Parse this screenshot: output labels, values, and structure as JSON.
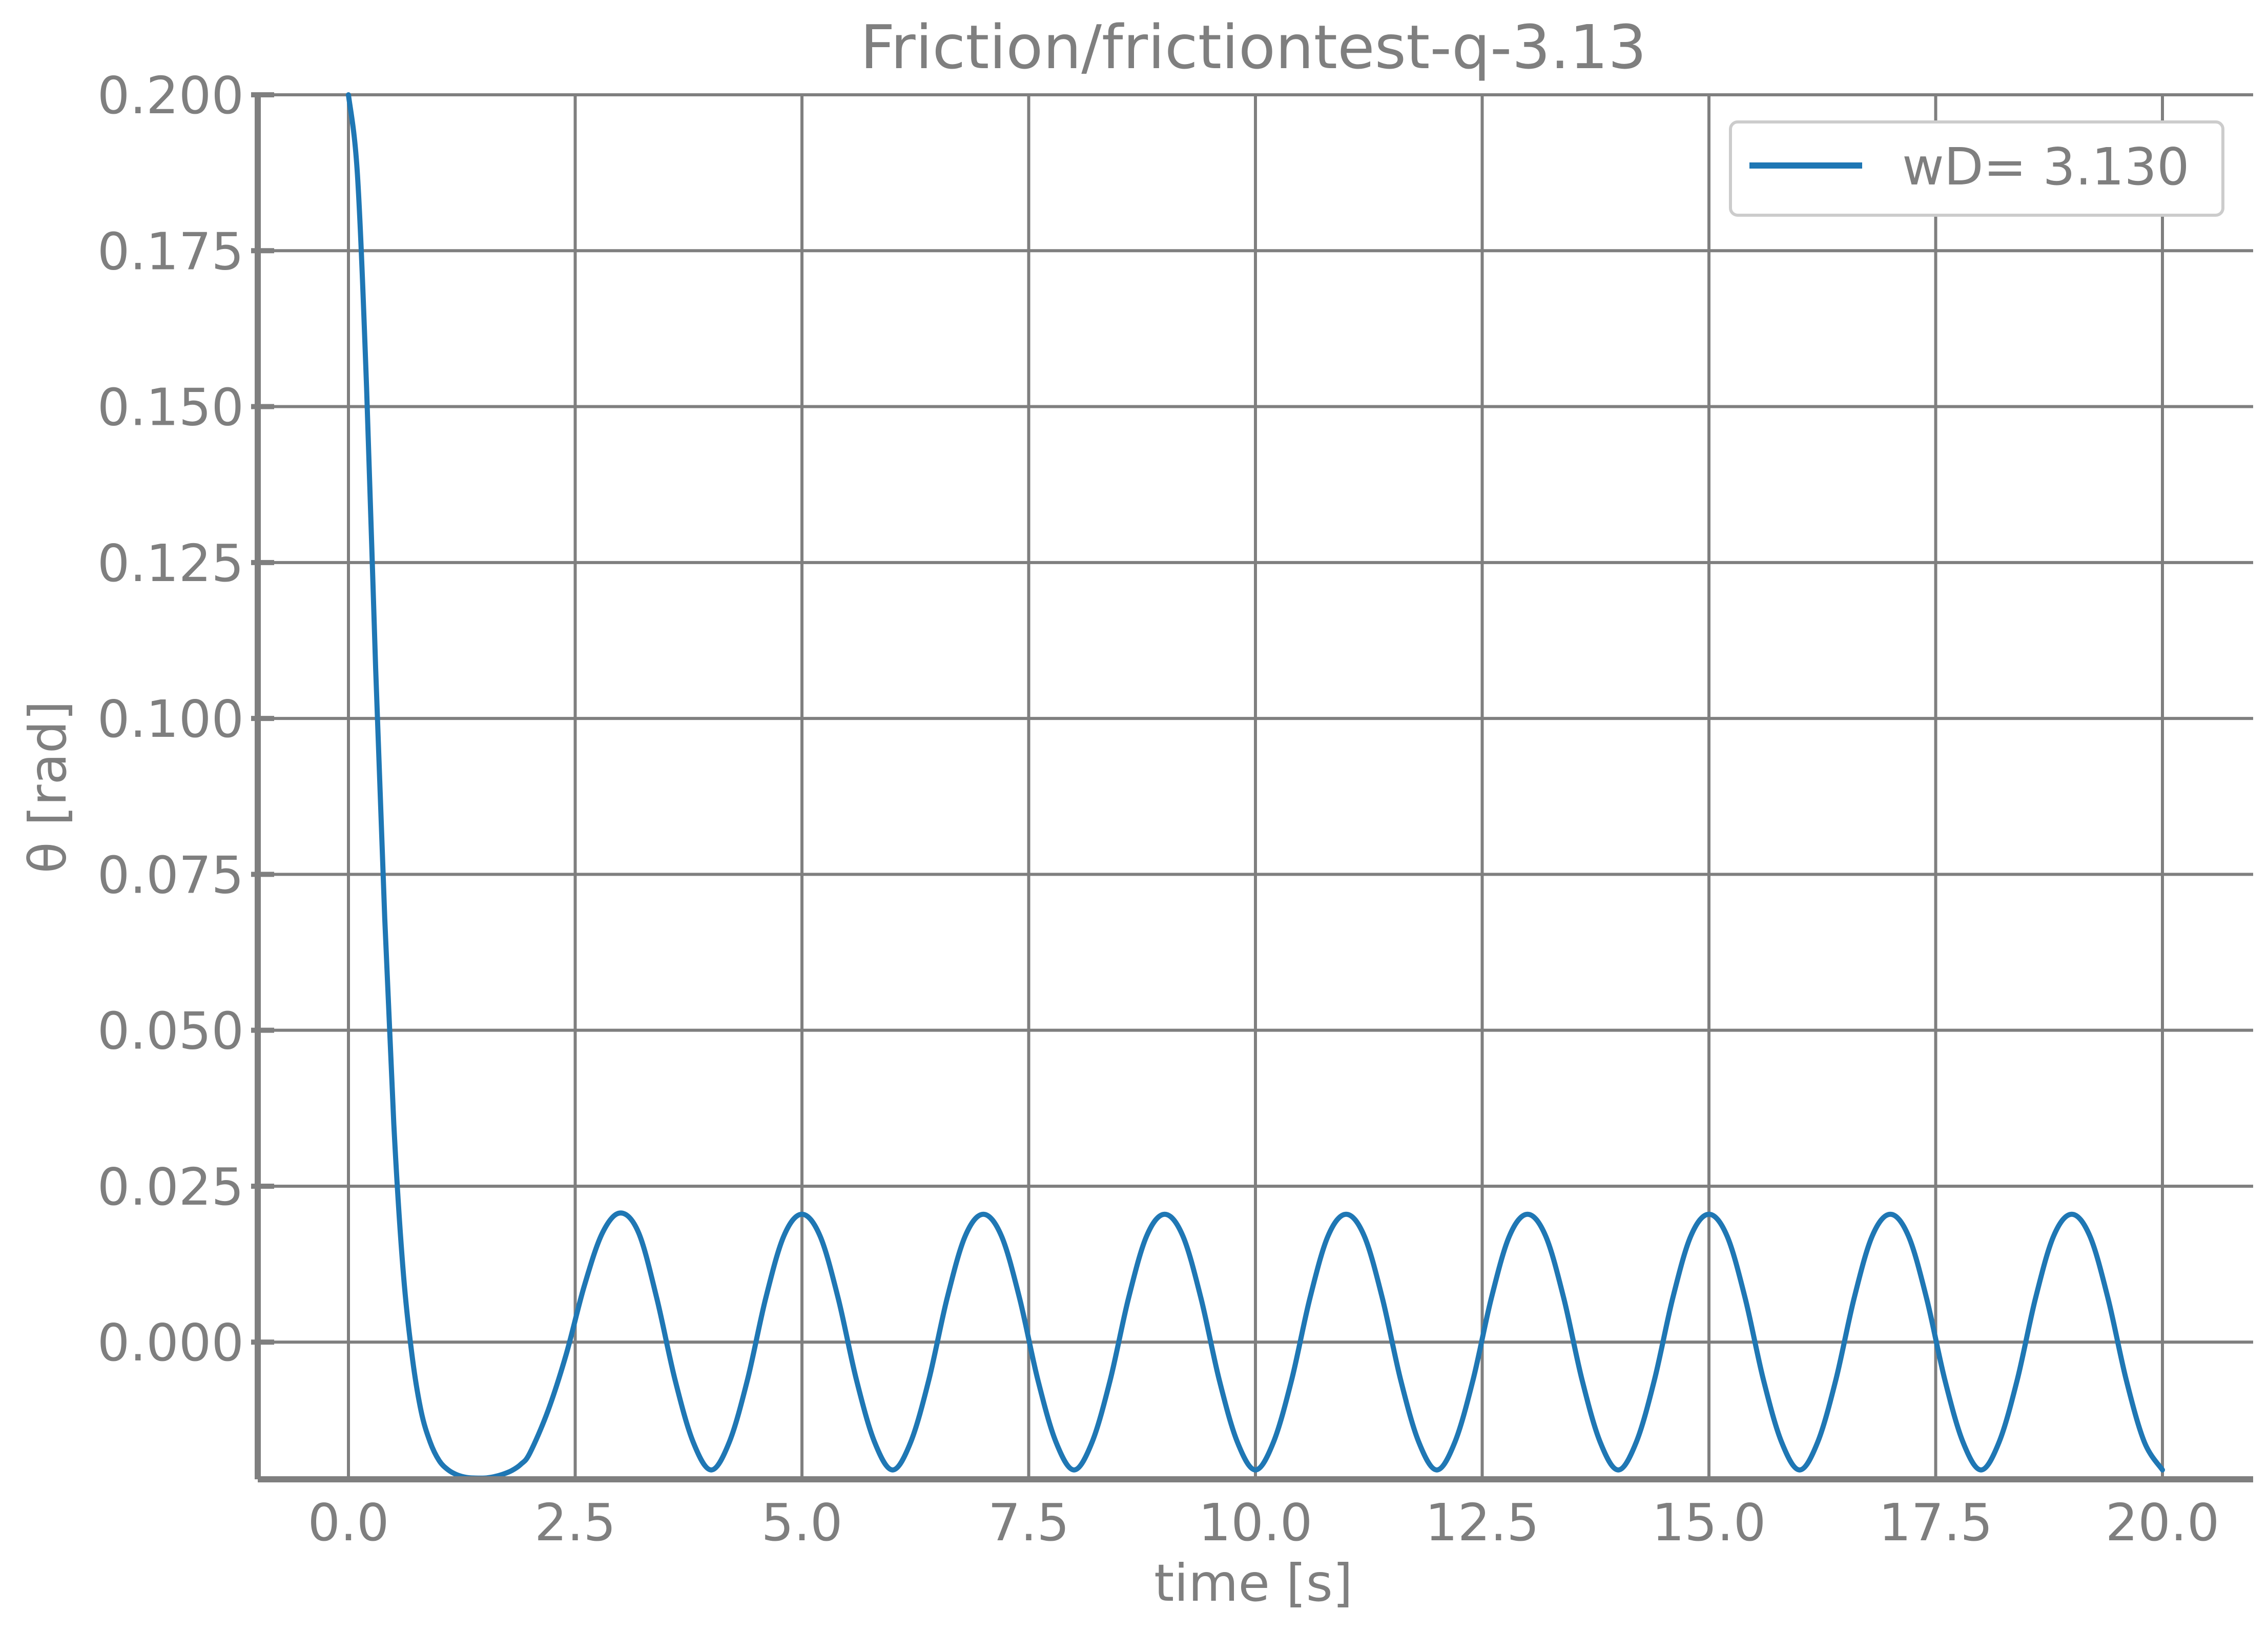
{
  "chart_data": {
    "type": "line",
    "title": "Friction/frictiontest-q-3.13",
    "xlabel": "time [s]",
    "ylabel": "θ [rad]",
    "xlim": [
      -1.0,
      21.0
    ],
    "ylim": [
      -0.022,
      0.2
    ],
    "xticks": [
      0.0,
      2.5,
      5.0,
      7.5,
      10.0,
      12.5,
      15.0,
      17.5,
      20.0
    ],
    "xtick_labels": [
      "0.0",
      "2.5",
      "5.0",
      "7.5",
      "10.0",
      "12.5",
      "15.0",
      "17.5",
      "20.0"
    ],
    "yticks": [
      0.0,
      0.025,
      0.05,
      0.075,
      0.1,
      0.125,
      0.15,
      0.175,
      0.2
    ],
    "ytick_labels": [
      "0.000",
      "0.025",
      "0.050",
      "0.075",
      "0.100",
      "0.125",
      "0.150",
      "0.175",
      "0.200"
    ],
    "grid": true,
    "legend_position": "top-right",
    "series": [
      {
        "name": "wD= 3.130",
        "color": "#1f77b4",
        "x": [
          0.0,
          0.1,
          0.2,
          0.3,
          0.4,
          0.5,
          0.6,
          0.7,
          0.8,
          0.9,
          1.0,
          1.1,
          1.2,
          1.3,
          1.4,
          1.5,
          1.6,
          1.7,
          1.8,
          1.9,
          2.0,
          2.2,
          2.4,
          2.6,
          2.8,
          3.0,
          3.2,
          3.4,
          3.6,
          3.8,
          4.0,
          4.2,
          4.4,
          4.6,
          4.8,
          5.0,
          5.2,
          5.4,
          5.6,
          5.8,
          6.0,
          6.2,
          6.4,
          6.6,
          6.8,
          7.0,
          7.2,
          7.4,
          7.6,
          7.8,
          8.0,
          8.2,
          8.4,
          8.6,
          8.8,
          9.0,
          9.2,
          9.4,
          9.6,
          9.8,
          10.0,
          10.2,
          10.4,
          10.6,
          10.8,
          11.0,
          11.2,
          11.4,
          11.6,
          11.8,
          12.0,
          12.2,
          12.4,
          12.6,
          12.8,
          13.0,
          13.2,
          13.4,
          13.6,
          13.8,
          14.0,
          14.2,
          14.4,
          14.6,
          14.8,
          15.0,
          15.2,
          15.4,
          15.6,
          15.8,
          16.0,
          16.2,
          16.4,
          16.6,
          16.8,
          17.0,
          17.2,
          17.4,
          17.6,
          17.8,
          18.0,
          18.2,
          18.4,
          18.6,
          18.8,
          19.0,
          19.2,
          19.4,
          19.6,
          19.8,
          20.0
        ],
        "y": [
          0.2,
          0.187,
          0.153,
          0.108,
          0.068,
          0.035,
          0.012,
          -0.002,
          -0.011,
          -0.016,
          -0.019,
          -0.0205,
          -0.0213,
          -0.0217,
          -0.0218,
          -0.0218,
          -0.0216,
          -0.0212,
          -0.0206,
          -0.0196,
          -0.0178,
          -0.011,
          -0.002,
          0.009,
          0.0175,
          0.0207,
          0.0175,
          0.007,
          -0.006,
          -0.016,
          -0.0205,
          -0.016,
          -0.006,
          0.007,
          0.017,
          0.0205,
          0.017,
          0.007,
          -0.006,
          -0.016,
          -0.0205,
          -0.016,
          -0.006,
          0.007,
          0.017,
          0.0205,
          0.017,
          0.007,
          -0.006,
          -0.016,
          -0.0205,
          -0.016,
          -0.006,
          0.007,
          0.017,
          0.0205,
          0.017,
          0.007,
          -0.006,
          -0.016,
          -0.0205,
          -0.016,
          -0.006,
          0.007,
          0.017,
          0.0205,
          0.017,
          0.007,
          -0.006,
          -0.016,
          -0.0205,
          -0.016,
          -0.006,
          0.007,
          0.017,
          0.0205,
          0.017,
          0.007,
          -0.006,
          -0.016,
          -0.0205,
          -0.016,
          -0.006,
          0.007,
          0.017,
          0.0205,
          0.017,
          0.007,
          -0.006,
          -0.016,
          -0.0205,
          -0.016,
          -0.006,
          0.007,
          0.017,
          0.0205,
          0.017,
          0.007,
          -0.006,
          -0.016,
          -0.0205,
          -0.016,
          -0.006,
          0.007,
          0.017,
          0.0205,
          0.017,
          0.007,
          -0.006,
          -0.016,
          -0.0205
        ]
      }
    ]
  }
}
